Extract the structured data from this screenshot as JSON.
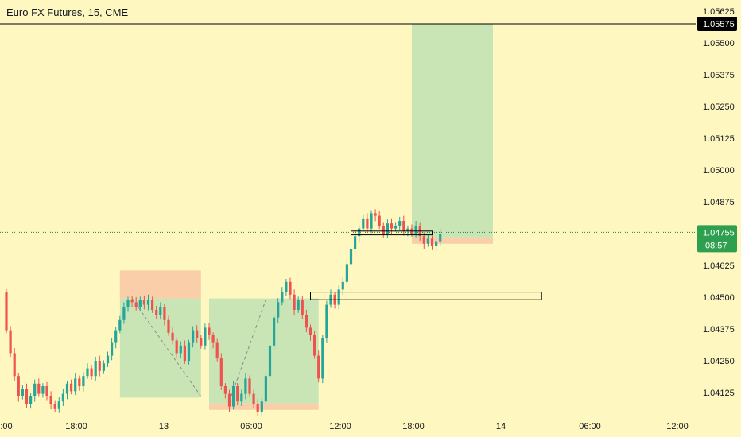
{
  "header": {
    "symbol_title": "Euro FX Futures, 15, CME"
  },
  "colors": {
    "background": "#fff7c0",
    "up": "#26a69a",
    "down": "#ef5350",
    "profit_zone": "#b7dfb1",
    "loss_zone": "#f9c7a5",
    "current_price_line": "#2e7d32",
    "black_line": "#000000"
  },
  "chart_data": {
    "type": "candlestick",
    "title": "Euro FX Futures, 15, CME",
    "x_tick_labels": [
      ":00",
      "18:00",
      "13",
      "06:00",
      "12:00",
      "18:00",
      "14",
      "06:00",
      "12:00"
    ],
    "y_tick_labels": [
      "1.05625",
      "1.05500",
      "1.05375",
      "1.05250",
      "1.05125",
      "1.05000",
      "1.04875",
      "1.04625",
      "1.04500",
      "1.04375",
      "1.04250",
      "1.04125"
    ],
    "ylim": [
      1.0405,
      1.0565
    ],
    "price_labels": {
      "black_line": "1.05575",
      "current": "1.04755",
      "countdown": "08:57"
    },
    "horizontal_lines": [
      {
        "name": "black-line",
        "value": 1.05575
      },
      {
        "name": "current-price",
        "value": 1.04755
      }
    ],
    "closes": [
      1.0437,
      1.0428,
      1.0419,
      1.0411,
      1.0414,
      1.0408,
      1.0411,
      1.0416,
      1.0412,
      1.0415,
      1.0411,
      1.0408,
      1.0406,
      1.0409,
      1.0412,
      1.0416,
      1.0413,
      1.0418,
      1.0415,
      1.0419,
      1.0422,
      1.0419,
      1.0425,
      1.0421,
      1.0424,
      1.0427,
      1.0432,
      1.0437,
      1.0441,
      1.0446,
      1.0449,
      1.0448,
      1.0446,
      1.0449,
      1.0447,
      1.0449,
      1.0445,
      1.0443,
      1.0446,
      1.0441,
      1.0436,
      1.0433,
      1.0428,
      1.0431,
      1.0425,
      1.0432,
      1.0437,
      1.0434,
      1.0431,
      1.0438,
      1.0435,
      1.0432,
      1.0426,
      1.0415,
      1.0412,
      1.0407,
      1.0415,
      1.0409,
      1.0412,
      1.0418,
      1.0412,
      1.0408,
      1.0405,
      1.0409,
      1.0419,
      1.0431,
      1.0442,
      1.0448,
      1.0452,
      1.0456,
      1.0451,
      1.0445,
      1.0449,
      1.0443,
      1.0438,
      1.0435,
      1.0427,
      1.0418,
      1.0434,
      1.0447,
      1.0451,
      1.0447,
      1.0453,
      1.0456,
      1.0463,
      1.0469,
      1.0474,
      1.0477,
      1.0481,
      1.0477,
      1.0483,
      1.0482,
      1.0478,
      1.0475,
      1.0479,
      1.0477,
      1.0478,
      1.048,
      1.0476,
      1.0477,
      1.0475,
      1.0478,
      1.0474,
      1.0471,
      1.0473,
      1.047,
      1.0472,
      1.0475
    ],
    "range_start_value": 1.0452,
    "position_tools": [
      {
        "name": "short-position",
        "start_index": 28,
        "end_index": 48,
        "entry": 1.04495,
        "stop": 1.04605,
        "target": 1.04105
      },
      {
        "name": "long-position",
        "start_index": 50,
        "end_index": 77,
        "entry": 1.04082,
        "stop": 1.04072,
        "target": 1.04495
      },
      {
        "name": "long-position-2",
        "start_index": 100,
        "end_index": 120,
        "entry": 1.04735,
        "stop": 1.04718,
        "target": 1.05575
      }
    ],
    "rectangles": [
      {
        "name": "small-box",
        "start_index": 85,
        "end_index": 105,
        "top": 1.0476,
        "bottom": 1.04745
      },
      {
        "name": "large-box",
        "start_index": 75,
        "end_index": 132,
        "top": 1.0452,
        "bottom": 1.0449
      }
    ],
    "trend_lines": [
      {
        "name": "trend-down",
        "from_index": 31,
        "from_value": 1.04495,
        "to_index": 48,
        "to_value": 1.0411
      },
      {
        "name": "trend-up",
        "from_index": 55,
        "from_value": 1.0409,
        "to_index": 64,
        "to_value": 1.0449
      }
    ]
  }
}
